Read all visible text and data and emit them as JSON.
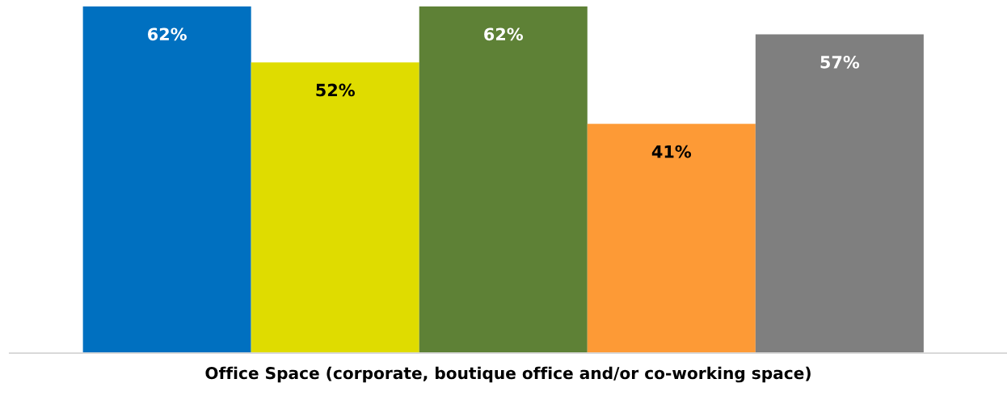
{
  "chart_data": {
    "type": "bar",
    "xlabel": "Office Space (corporate, boutique office and/or co-working space)",
    "categories": [
      null,
      null,
      null,
      null,
      null
    ],
    "values": [
      62,
      52,
      62,
      41,
      57
    ],
    "colors": [
      "#0070c0",
      "#dfdc00",
      "#5e8136",
      "#fd9a36",
      "#7f7f7f"
    ],
    "value_labels": [
      "62%",
      "52%",
      "62%",
      "41%",
      "57%"
    ],
    "ylim": [
      0,
      62
    ],
    "grid": false,
    "legend": false
  }
}
